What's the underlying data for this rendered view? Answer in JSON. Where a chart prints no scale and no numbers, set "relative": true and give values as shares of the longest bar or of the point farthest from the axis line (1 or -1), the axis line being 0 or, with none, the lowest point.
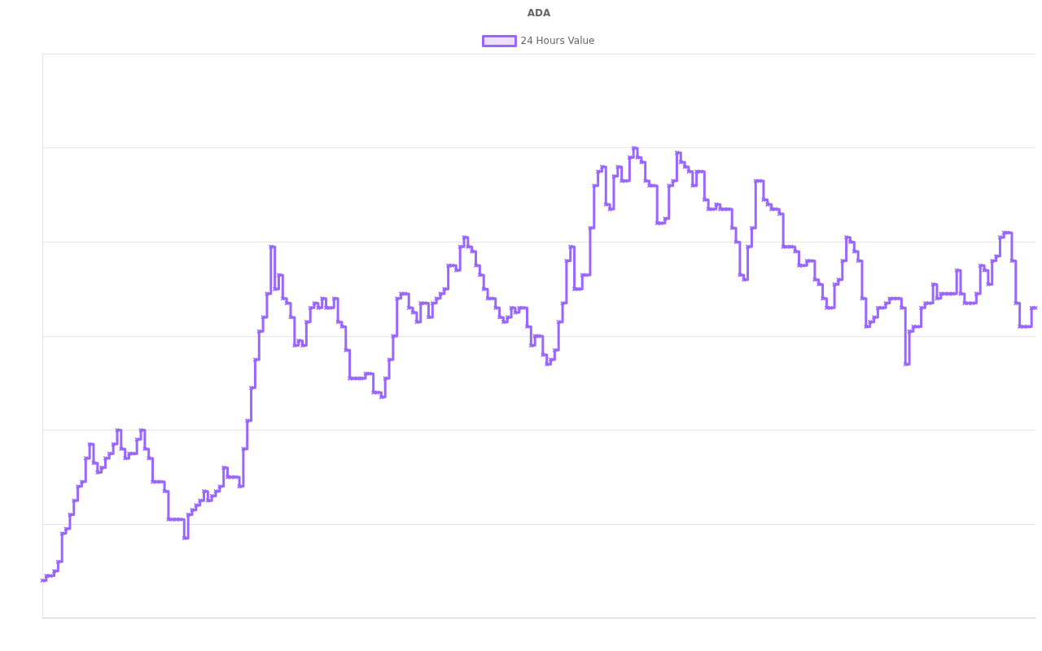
{
  "chart_data": {
    "type": "step",
    "title": "ADA",
    "relative": true,
    "grid": "y",
    "legend": "top",
    "marker": "cross",
    "line_style": "solid",
    "categories": [
      null,
      null,
      null,
      null,
      null,
      null,
      null,
      null,
      null,
      null,
      null,
      null,
      null,
      null,
      null,
      null,
      null,
      null,
      null,
      null,
      null,
      null,
      null,
      null,
      null,
      null,
      null,
      null,
      null,
      null,
      null,
      null,
      null,
      null,
      null,
      null,
      null,
      null,
      null,
      null,
      null,
      null,
      null,
      null,
      null,
      null,
      null,
      null,
      null,
      null,
      null,
      null,
      null,
      null,
      null,
      null,
      null,
      null,
      null,
      null,
      null,
      null,
      null,
      null,
      null,
      null,
      null,
      null,
      null,
      null,
      null,
      null,
      null,
      null,
      null,
      null,
      null,
      null,
      null,
      null,
      null,
      null,
      null,
      null,
      null,
      null,
      null,
      null,
      null,
      null,
      null,
      null,
      null,
      null,
      null,
      null,
      null,
      null,
      null,
      null,
      null,
      null,
      null,
      null,
      null,
      null,
      null,
      null,
      null,
      null,
      null,
      null,
      null,
      null,
      null,
      null,
      null,
      null,
      null,
      null,
      null,
      null,
      null,
      null,
      null,
      null,
      null,
      null,
      null,
      null,
      null,
      null,
      null,
      null,
      null,
      null,
      null,
      null,
      null,
      null,
      null,
      null,
      null,
      null,
      null,
      null,
      null,
      null,
      null,
      null,
      null,
      null,
      null,
      null,
      null,
      null,
      null,
      null,
      null,
      null,
      null,
      null,
      null,
      null,
      null,
      null,
      null,
      null,
      null,
      null,
      null,
      null,
      null,
      null,
      null,
      null,
      null,
      null,
      null,
      null,
      null,
      null,
      null,
      null,
      null,
      null,
      null,
      null,
      null,
      null,
      null,
      null,
      null,
      null,
      null,
      null,
      null,
      null,
      null,
      null,
      null,
      null,
      null,
      null,
      null,
      null,
      null,
      null,
      null,
      null,
      null,
      null,
      null,
      null,
      null,
      null,
      null,
      null,
      null,
      null,
      null,
      null,
      null,
      null,
      null,
      null,
      null,
      null,
      null,
      null,
      null,
      null,
      null,
      null,
      null,
      null,
      null,
      null,
      null,
      null,
      null,
      null,
      null,
      null,
      null,
      null,
      null,
      null,
      null,
      null,
      null,
      null,
      null
    ],
    "series": [
      {
        "name": "24 Hours Value",
        "color": "#9966ff",
        "values": [
          0.08,
          0.09,
          0.09,
          0.1,
          0.12,
          0.18,
          0.19,
          0.22,
          0.25,
          0.28,
          0.29,
          0.34,
          0.37,
          0.33,
          0.31,
          0.32,
          0.34,
          0.35,
          0.37,
          0.4,
          0.36,
          0.34,
          0.35,
          0.35,
          0.38,
          0.4,
          0.36,
          0.34,
          0.29,
          0.29,
          0.29,
          0.27,
          0.21,
          0.21,
          0.21,
          0.21,
          0.17,
          0.22,
          0.23,
          0.24,
          0.25,
          0.27,
          0.25,
          0.26,
          0.27,
          0.28,
          0.32,
          0.3,
          0.3,
          0.3,
          0.28,
          0.36,
          0.42,
          0.49,
          0.55,
          0.61,
          0.64,
          0.69,
          0.79,
          0.7,
          0.73,
          0.68,
          0.67,
          0.64,
          0.58,
          0.59,
          0.58,
          0.63,
          0.66,
          0.67,
          0.66,
          0.68,
          0.66,
          0.66,
          0.68,
          0.63,
          0.62,
          0.57,
          0.51,
          0.51,
          0.51,
          0.51,
          0.52,
          0.52,
          0.48,
          0.48,
          0.47,
          0.51,
          0.55,
          0.6,
          0.68,
          0.69,
          0.69,
          0.66,
          0.65,
          0.63,
          0.67,
          0.67,
          0.64,
          0.67,
          0.68,
          0.69,
          0.7,
          0.75,
          0.75,
          0.74,
          0.79,
          0.81,
          0.79,
          0.78,
          0.75,
          0.73,
          0.7,
          0.68,
          0.68,
          0.66,
          0.64,
          0.63,
          0.64,
          0.66,
          0.65,
          0.66,
          0.66,
          0.62,
          0.58,
          0.6,
          0.6,
          0.56,
          0.54,
          0.55,
          0.57,
          0.63,
          0.67,
          0.76,
          0.79,
          0.7,
          0.7,
          0.73,
          0.73,
          0.83,
          0.92,
          0.95,
          0.96,
          0.88,
          0.87,
          0.94,
          0.96,
          0.93,
          0.93,
          0.98,
          1.0,
          0.98,
          0.97,
          0.93,
          0.92,
          0.92,
          0.84,
          0.84,
          0.85,
          0.92,
          0.93,
          0.99,
          0.97,
          0.96,
          0.95,
          0.92,
          0.95,
          0.95,
          0.89,
          0.87,
          0.87,
          0.88,
          0.87,
          0.87,
          0.87,
          0.83,
          0.8,
          0.73,
          0.72,
          0.79,
          0.83,
          0.93,
          0.93,
          0.89,
          0.88,
          0.87,
          0.87,
          0.86,
          0.79,
          0.79,
          0.79,
          0.78,
          0.75,
          0.75,
          0.76,
          0.76,
          0.72,
          0.71,
          0.68,
          0.66,
          0.66,
          0.71,
          0.72,
          0.76,
          0.81,
          0.8,
          0.78,
          0.76,
          0.68,
          0.62,
          0.63,
          0.64,
          0.66,
          0.66,
          0.67,
          0.68,
          0.68,
          0.68,
          0.66,
          0.54,
          0.61,
          0.62,
          0.62,
          0.66,
          0.67,
          0.67,
          0.71,
          0.68,
          0.69,
          0.69,
          0.69,
          0.69,
          0.74,
          0.69,
          0.67,
          0.67,
          0.67,
          0.69,
          0.75,
          0.74,
          0.71,
          0.76,
          0.77,
          0.81,
          0.82,
          0.82,
          0.76,
          0.67,
          0.62,
          0.62,
          0.62,
          0.66,
          0.66
        ]
      }
    ]
  }
}
